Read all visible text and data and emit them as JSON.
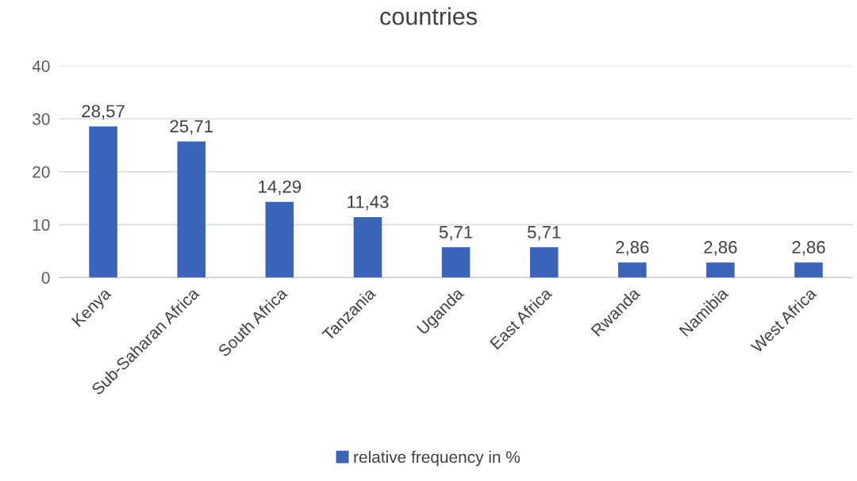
{
  "chart_data": {
    "type": "bar",
    "title": "countries",
    "categories": [
      "Kenya",
      "Sub-Saharan Africa",
      "South Africa",
      "Tanzania",
      "Uganda",
      "East Africa",
      "Rwanda",
      "Namibia",
      "West Africa"
    ],
    "series": [
      {
        "name": "relative frequency in %",
        "color": "#3a64b8",
        "values": [
          28.57,
          25.71,
          14.29,
          11.43,
          5.71,
          5.71,
          2.86,
          2.86,
          2.86
        ],
        "value_labels": [
          "28,57",
          "25,71",
          "14,29",
          "11,43",
          "5,71",
          "5,71",
          "2,86",
          "2,86",
          "2,86"
        ]
      }
    ],
    "ylim": [
      0,
      40
    ],
    "yticks": [
      0,
      10,
      20,
      30,
      40
    ],
    "grid": "y",
    "legend": "bottom"
  }
}
